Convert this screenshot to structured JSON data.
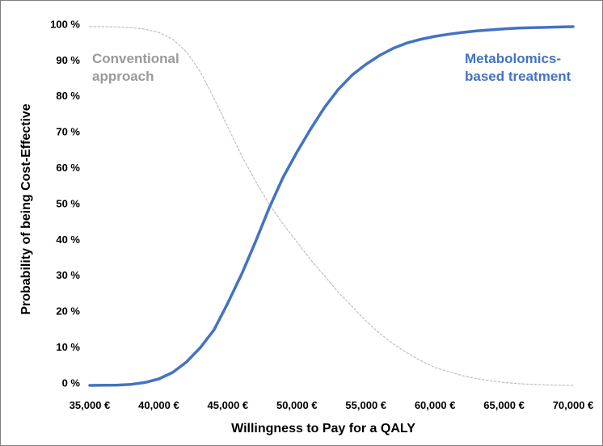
{
  "chart_data": {
    "type": "line",
    "title": "",
    "xlabel": "Willingness to Pay for a QALY",
    "ylabel": "Probability of being Cost-Effective",
    "xlim": [
      35000,
      70000
    ],
    "ylim": [
      0,
      100
    ],
    "x_ticks": [
      {
        "value": 35000,
        "label": "35,000 €"
      },
      {
        "value": 40000,
        "label": "40,000 €"
      },
      {
        "value": 45000,
        "label": "45,000 €"
      },
      {
        "value": 50000,
        "label": "50,000 €"
      },
      {
        "value": 55000,
        "label": "55,000 €"
      },
      {
        "value": 60000,
        "label": "60,000 €"
      },
      {
        "value": 65000,
        "label": "65,000 €"
      },
      {
        "value": 70000,
        "label": "70,000 €"
      }
    ],
    "y_ticks": [
      {
        "value": 0,
        "label": "0 %"
      },
      {
        "value": 10,
        "label": "10 %"
      },
      {
        "value": 20,
        "label": "20 %"
      },
      {
        "value": 30,
        "label": "30 %"
      },
      {
        "value": 40,
        "label": "40 %"
      },
      {
        "value": 50,
        "label": "50 %"
      },
      {
        "value": 60,
        "label": "60 %"
      },
      {
        "value": 70,
        "label": "70 %"
      },
      {
        "value": 80,
        "label": "80 %"
      },
      {
        "value": 90,
        "label": "90 %"
      },
      {
        "value": 100,
        "label": "100 %"
      }
    ],
    "grid": false,
    "legend": "none",
    "series": [
      {
        "name": "Conventional approach",
        "label_lines": [
          "Conventional",
          "approach"
        ],
        "color": "#bfbfbf",
        "line_style": "dotted",
        "x": [
          35000,
          36000,
          37000,
          38000,
          39000,
          40000,
          41000,
          42000,
          43000,
          44000,
          45000,
          46000,
          47000,
          48000,
          49000,
          50000,
          51000,
          52000,
          53000,
          54000,
          55000,
          56000,
          57000,
          58000,
          59000,
          60000,
          61000,
          62000,
          63000,
          64000,
          65000,
          66000,
          67000,
          68000,
          69000,
          70000
        ],
        "values": [
          100,
          100,
          99.9,
          99.7,
          99.3,
          98.4,
          96.5,
          93,
          87.5,
          80,
          72,
          64,
          57,
          50.5,
          45,
          40,
          35,
          30.5,
          26,
          22,
          18,
          14.5,
          11.5,
          9,
          6.8,
          5,
          3.8,
          2.7,
          1.9,
          1.3,
          0.8,
          0.5,
          0.3,
          0.15,
          0.05,
          0
        ]
      },
      {
        "name": "Metabolomics-based treatment",
        "label_lines": [
          "Metabolomics-",
          "based treatment"
        ],
        "color": "#4472c4",
        "line_style": "solid",
        "x": [
          35000,
          36000,
          37000,
          38000,
          39000,
          40000,
          41000,
          42000,
          43000,
          44000,
          45000,
          46000,
          47000,
          48000,
          49000,
          50000,
          51000,
          52000,
          53000,
          54000,
          55000,
          56000,
          57000,
          58000,
          59000,
          60000,
          61000,
          62000,
          63000,
          64000,
          65000,
          66000,
          67000,
          68000,
          69000,
          70000
        ],
        "values": [
          0,
          0.05,
          0.1,
          0.3,
          0.8,
          1.8,
          3.6,
          6.5,
          10.5,
          15.5,
          23,
          31,
          40,
          49.5,
          58,
          65,
          71.5,
          77.5,
          82.5,
          86.5,
          89.5,
          92,
          94,
          95.5,
          96.5,
          97.3,
          97.9,
          98.4,
          98.8,
          99.1,
          99.4,
          99.6,
          99.7,
          99.8,
          99.9,
          100
        ]
      }
    ]
  }
}
